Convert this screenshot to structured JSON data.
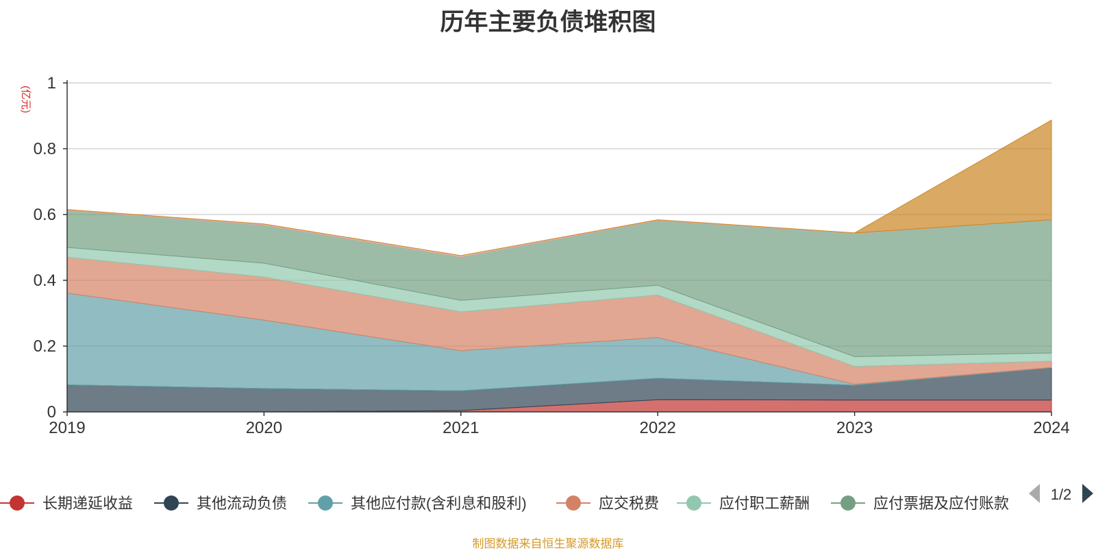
{
  "title": "历年主要负债堆积图",
  "source": "制图数据来自恒生聚源数据库",
  "chart_data": {
    "type": "area",
    "stacked": true,
    "title": "历年主要负债堆积图",
    "ylabel": "(亿元)",
    "x": [
      "2019",
      "2020",
      "2021",
      "2022",
      "2023",
      "2024"
    ],
    "ylim": [
      0,
      1
    ],
    "yticks": [
      "0",
      "0.2",
      "0.4",
      "0.6",
      "0.8",
      "1"
    ],
    "grid": true,
    "legend_position": "bottom",
    "series": [
      {
        "name": "长期递延收益",
        "color": "#c23531",
        "values": [
          0,
          0,
          0.004,
          0.037,
          0.036,
          0.036
        ]
      },
      {
        "name": "其他流动负债",
        "color": "#2f4554",
        "values": [
          0.082,
          0.071,
          0.06,
          0.065,
          0.045,
          0.098
        ]
      },
      {
        "name": "其他应付款(含利息和股利)",
        "color": "#61a0a8",
        "values": [
          0.279,
          0.208,
          0.122,
          0.124,
          0.003,
          0.001
        ]
      },
      {
        "name": "应交税费",
        "color": "#d48265",
        "values": [
          0.109,
          0.131,
          0.118,
          0.129,
          0.054,
          0.019
        ]
      },
      {
        "name": "应付职工薪酬",
        "color": "#91c7ae",
        "values": [
          0.03,
          0.042,
          0.035,
          0.03,
          0.03,
          0.025
        ]
      },
      {
        "name": "应付票据及应付账款",
        "color": "#749f83",
        "values": [
          0.113,
          0.116,
          0.132,
          0.197,
          0.375,
          0.405
        ]
      },
      {
        "name": "",
        "color": "#e5a9a0",
        "values": [
          0.002,
          0.003,
          0.004,
          0.002,
          0.001,
          0
        ]
      },
      {
        "name": "",
        "color": "#ca8622",
        "values": [
          0,
          0,
          0,
          0,
          0,
          0.303
        ]
      }
    ],
    "legend": {
      "page_indicator": "1/2"
    }
  }
}
